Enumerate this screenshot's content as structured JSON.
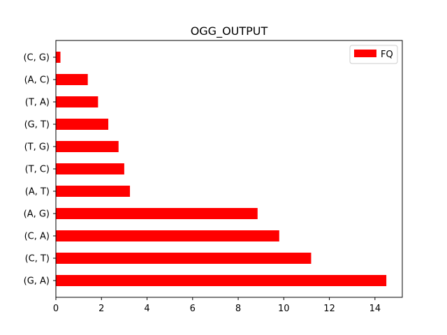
{
  "chart_data": {
    "type": "bar",
    "orientation": "horizontal",
    "title": "OGG_OUTPUT",
    "xlabel": "",
    "ylabel": "",
    "categories": [
      "(G, A)",
      "(C, T)",
      "(C, A)",
      "(A, G)",
      "(A, T)",
      "(T, C)",
      "(T, G)",
      "(G, T)",
      "(T, A)",
      "(A, C)",
      "(C, G)"
    ],
    "series": [
      {
        "name": "FQ",
        "color": "#ff0000",
        "values": [
          14.5,
          11.2,
          9.8,
          8.85,
          3.25,
          3.0,
          2.75,
          2.3,
          1.85,
          1.4,
          0.2
        ]
      }
    ],
    "xlim": [
      0,
      15.2
    ],
    "xticks": [
      0,
      2,
      4,
      6,
      8,
      10,
      12,
      14
    ],
    "xtick_labels": [
      "0",
      "2",
      "4",
      "6",
      "8",
      "10",
      "12",
      "14"
    ],
    "grid": false,
    "legend_position": "top-right"
  }
}
